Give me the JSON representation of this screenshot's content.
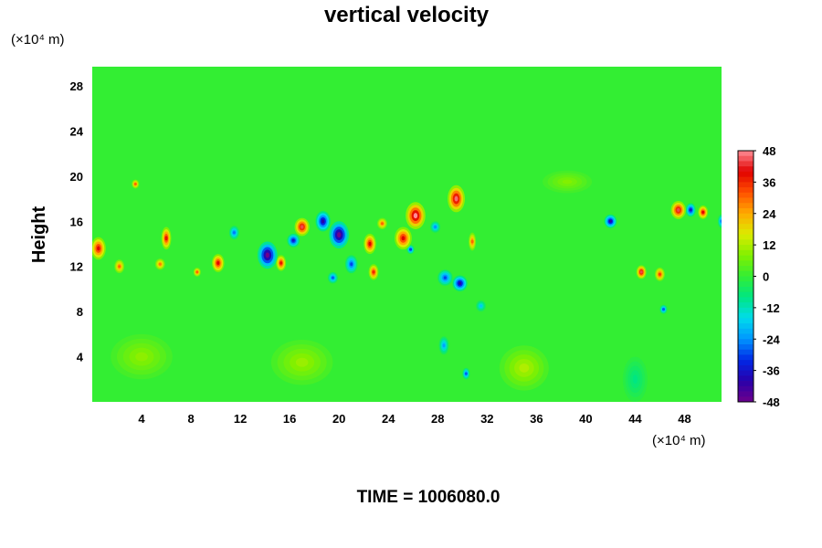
{
  "chart_data": {
    "type": "heatmap",
    "title": "vertical velocity",
    "ylabel": "Height",
    "y_unit_label": "(×10⁴ m)",
    "x_unit_label": "(×10⁴ m)",
    "xlim": [
      0,
      51
    ],
    "ylim": [
      0,
      29.7
    ],
    "x_ticks": [
      4,
      8,
      12,
      16,
      20,
      24,
      28,
      32,
      36,
      40,
      44,
      48
    ],
    "y_ticks": [
      4,
      8,
      12,
      16,
      20,
      24,
      28
    ],
    "colorbar": {
      "min": -48,
      "max": 48,
      "ticks": [
        48,
        36,
        24,
        12,
        0,
        -12,
        -24,
        -36,
        -48
      ],
      "colormap": "rainbow (purple-blue-cyan-green-yellow-red-pink)"
    },
    "background_value": 0,
    "features": [
      {
        "x": 0.5,
        "y": 13.6,
        "value": 40,
        "sx": 0.6,
        "sy": 1.0
      },
      {
        "x": 2.2,
        "y": 12.0,
        "value": 30,
        "sx": 0.4,
        "sy": 0.6
      },
      {
        "x": 6.0,
        "y": 14.5,
        "value": 38,
        "sx": 0.4,
        "sy": 1.0
      },
      {
        "x": 5.5,
        "y": 12.2,
        "value": 28,
        "sx": 0.4,
        "sy": 0.5
      },
      {
        "x": 3.5,
        "y": 19.3,
        "value": 30,
        "sx": 0.3,
        "sy": 0.4
      },
      {
        "x": 8.5,
        "y": 11.5,
        "value": 30,
        "sx": 0.3,
        "sy": 0.4
      },
      {
        "x": 10.2,
        "y": 12.3,
        "value": 40,
        "sx": 0.5,
        "sy": 0.8
      },
      {
        "x": 11.5,
        "y": 15.0,
        "value": -26,
        "sx": 0.4,
        "sy": 0.6
      },
      {
        "x": 14.2,
        "y": 13.0,
        "value": -48,
        "sx": 0.8,
        "sy": 1.2
      },
      {
        "x": 15.3,
        "y": 12.3,
        "value": 38,
        "sx": 0.4,
        "sy": 0.7
      },
      {
        "x": 17.0,
        "y": 15.5,
        "value": 44,
        "sx": 0.6,
        "sy": 0.8
      },
      {
        "x": 16.3,
        "y": 14.3,
        "value": -36,
        "sx": 0.5,
        "sy": 0.6
      },
      {
        "x": 18.7,
        "y": 16.0,
        "value": -40,
        "sx": 0.6,
        "sy": 0.9
      },
      {
        "x": 20.0,
        "y": 14.8,
        "value": -48,
        "sx": 0.8,
        "sy": 1.2
      },
      {
        "x": 21.0,
        "y": 12.2,
        "value": -30,
        "sx": 0.5,
        "sy": 0.8
      },
      {
        "x": 19.5,
        "y": 11.0,
        "value": -28,
        "sx": 0.4,
        "sy": 0.5
      },
      {
        "x": 22.5,
        "y": 14.0,
        "value": 40,
        "sx": 0.5,
        "sy": 0.9
      },
      {
        "x": 22.8,
        "y": 11.5,
        "value": 36,
        "sx": 0.4,
        "sy": 0.7
      },
      {
        "x": 23.5,
        "y": 15.8,
        "value": 30,
        "sx": 0.4,
        "sy": 0.5
      },
      {
        "x": 25.2,
        "y": 14.5,
        "value": 40,
        "sx": 0.7,
        "sy": 1.0
      },
      {
        "x": 26.2,
        "y": 16.5,
        "value": 48,
        "sx": 0.8,
        "sy": 1.2
      },
      {
        "x": 25.8,
        "y": 13.5,
        "value": -30,
        "sx": 0.3,
        "sy": 0.4
      },
      {
        "x": 27.8,
        "y": 15.5,
        "value": -24,
        "sx": 0.4,
        "sy": 0.5
      },
      {
        "x": 29.5,
        "y": 18.0,
        "value": 46,
        "sx": 0.7,
        "sy": 1.2
      },
      {
        "x": 28.6,
        "y": 11.0,
        "value": -30,
        "sx": 0.6,
        "sy": 0.7
      },
      {
        "x": 29.8,
        "y": 10.5,
        "value": -40,
        "sx": 0.6,
        "sy": 0.7
      },
      {
        "x": 30.8,
        "y": 14.2,
        "value": 30,
        "sx": 0.3,
        "sy": 0.8
      },
      {
        "x": 28.5,
        "y": 5.0,
        "value": -22,
        "sx": 0.4,
        "sy": 0.8
      },
      {
        "x": 30.3,
        "y": 2.5,
        "value": -28,
        "sx": 0.3,
        "sy": 0.5
      },
      {
        "x": 31.5,
        "y": 8.5,
        "value": -18,
        "sx": 0.4,
        "sy": 0.5
      },
      {
        "x": 42.0,
        "y": 16.0,
        "value": -40,
        "sx": 0.5,
        "sy": 0.6
      },
      {
        "x": 44.5,
        "y": 11.5,
        "value": 44,
        "sx": 0.4,
        "sy": 0.6
      },
      {
        "x": 46.0,
        "y": 11.3,
        "value": 34,
        "sx": 0.4,
        "sy": 0.6
      },
      {
        "x": 46.3,
        "y": 8.2,
        "value": -28,
        "sx": 0.3,
        "sy": 0.4
      },
      {
        "x": 47.5,
        "y": 17.0,
        "value": 44,
        "sx": 0.6,
        "sy": 0.8
      },
      {
        "x": 48.5,
        "y": 17.0,
        "value": -36,
        "sx": 0.4,
        "sy": 0.6
      },
      {
        "x": 49.5,
        "y": 16.8,
        "value": 40,
        "sx": 0.4,
        "sy": 0.6
      },
      {
        "x": 51.0,
        "y": 16.0,
        "value": -26,
        "sx": 0.3,
        "sy": 0.6
      },
      {
        "x": 35.0,
        "y": 3.0,
        "value": 12,
        "sx": 2.0,
        "sy": 2.0
      },
      {
        "x": 17.0,
        "y": 3.5,
        "value": 10,
        "sx": 2.5,
        "sy": 2.0
      },
      {
        "x": 4.0,
        "y": 4.0,
        "value": 9,
        "sx": 2.5,
        "sy": 2.0
      },
      {
        "x": 38.5,
        "y": 19.5,
        "value": 8,
        "sx": 2.0,
        "sy": 1.0
      },
      {
        "x": 44.0,
        "y": 2.0,
        "value": -8,
        "sx": 1.0,
        "sy": 2.0
      }
    ]
  },
  "footer": {
    "time_label": "TIME = 1006080.0"
  }
}
